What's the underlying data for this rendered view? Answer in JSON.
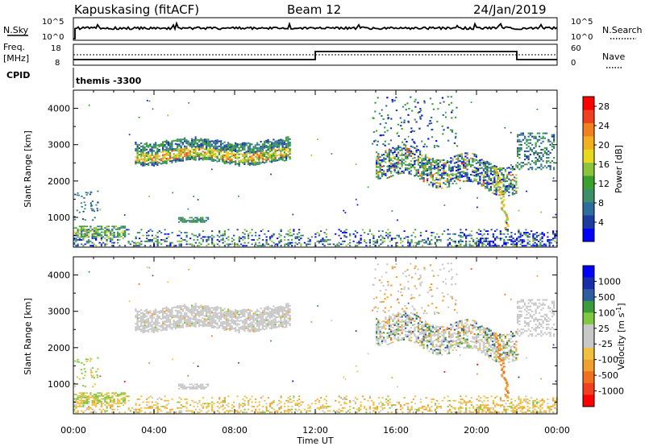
{
  "header": {
    "station": "Kapuskasing (fitACF)",
    "beam": "Beam 12",
    "date": "24/Jan/2019"
  },
  "status_panels": {
    "nsky_label": "N.Sky",
    "nsky_ticks": [
      "10^5",
      "10^0"
    ],
    "nsearch_label": "N.Search",
    "nsearch_ticks": [
      "10^5",
      "10^0"
    ],
    "freq_label_1": "Freq.",
    "freq_label_2": "[MHz]",
    "freq_ticks": [
      "18",
      "8"
    ],
    "nave_label": "Nave",
    "nave_ticks": [
      "60",
      "0"
    ],
    "cpid_label": "CPID",
    "cpid_text": "themis -3300"
  },
  "colors": {
    "power": [
      "#0000ff",
      "#1e3ca0",
      "#2e6e9e",
      "#3f8f6a",
      "#3aa030",
      "#8ac43c",
      "#e8d820",
      "#f0b020",
      "#f08020",
      "#f04020",
      "#ff0000"
    ],
    "velocity": [
      "#ff0000",
      "#f04020",
      "#f07020",
      "#f0a030",
      "#f0c040",
      "#c8c8c8",
      "#c8c8c8",
      "#80c840",
      "#3a9c3a",
      "#2e5ea0",
      "#1a2ea8",
      "#0000ff"
    ],
    "velocity_gray": "#c8c8c8"
  },
  "chart_data": [
    {
      "type": "heatmap",
      "name": "power",
      "ylabel": "Slant Range [km]",
      "yticks": [
        "1000",
        "2000",
        "3000",
        "4000"
      ],
      "colorbar_label": "Power [dB]",
      "colorbar_ticks": [
        "4",
        "8",
        "12",
        "16",
        "20",
        "24",
        "28"
      ],
      "colorbar_range": [
        0,
        30
      ],
      "xlim": [
        "00:00",
        "24:00"
      ],
      "ylim": [
        180,
        4500
      ],
      "regions": [
        {
          "t0": 3.0,
          "t1": 10.8,
          "r0": 2500,
          "r1": 3150,
          "level": "medium-high"
        },
        {
          "t0": 15.0,
          "t1": 21.8,
          "r0": 2000,
          "r1": 2800,
          "level": "medium"
        },
        {
          "t0": 0.0,
          "t1": 24.0,
          "r0": 180,
          "r1": 700,
          "level": "low-mixed"
        }
      ]
    },
    {
      "type": "heatmap",
      "name": "velocity",
      "ylabel": "Slant Range [km]",
      "yticks": [
        "1000",
        "2000",
        "3000",
        "4000"
      ],
      "colorbar_label": "Velocity [m s",
      "colorbar_label_exp": "-1",
      "colorbar_label_end": "]",
      "colorbar_ticks": [
        "1000",
        "500",
        "100",
        "25",
        "-25",
        "-100",
        "-500",
        "-1000"
      ],
      "xlim": [
        "00:00",
        "24:00"
      ],
      "ylim": [
        180,
        4500
      ],
      "xticks": [
        "00:00",
        "04:00",
        "08:00",
        "12:00",
        "16:00",
        "20:00",
        "00:00"
      ],
      "xlabel": "Time UT"
    }
  ]
}
